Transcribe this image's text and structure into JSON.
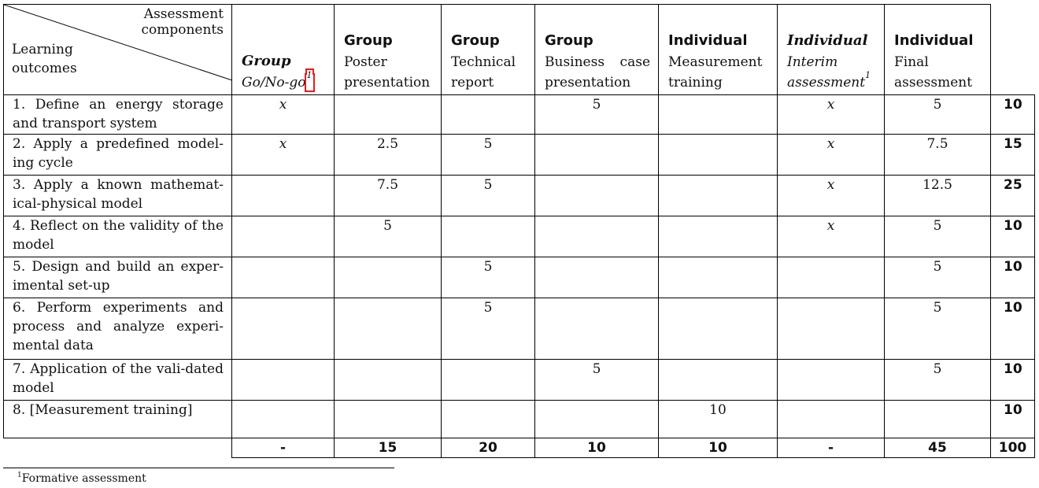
{
  "header": {
    "diag_top": [
      "Assessment",
      "components"
    ],
    "diag_bottom": [
      "Learning",
      "outcomes"
    ],
    "columns": [
      {
        "main": "Group",
        "sub": "Go/No-go",
        "sup": "1",
        "italic": true
      },
      {
        "main": "Group",
        "sub": "Poster presentation",
        "sup": "",
        "italic": false
      },
      {
        "main": "Group",
        "sub": "Technical report",
        "sup": "",
        "italic": false
      },
      {
        "main": "Group",
        "sub": "Business case presentation",
        "sup": "",
        "italic": false
      },
      {
        "main": "Individual",
        "sub": "Measurement training",
        "sup": "",
        "italic": false
      },
      {
        "main": "Individual",
        "sub": "Interim assessment",
        "sup": "1",
        "italic": true
      },
      {
        "main": "Individual",
        "sub": "Final assessment",
        "sup": "",
        "italic": false
      }
    ]
  },
  "rows": [
    {
      "outcome": "1. Define an energy storage and transport system",
      "cells": [
        "x",
        "",
        "",
        "5",
        "",
        "x",
        "5"
      ],
      "total": "10"
    },
    {
      "outcome": "2. Apply a predefined model-ing cycle",
      "cells": [
        "x",
        "2.5",
        "5",
        "",
        "",
        "x",
        "7.5"
      ],
      "total": "15"
    },
    {
      "outcome": "3. Apply a known mathemat-ical-physical model",
      "cells": [
        "",
        "7.5",
        "5",
        "",
        "",
        "x",
        "12.5"
      ],
      "total": "25"
    },
    {
      "outcome": "4. Reflect on the validity of the model",
      "cells": [
        "",
        "5",
        "",
        "",
        "",
        "x",
        "5"
      ],
      "total": "10"
    },
    {
      "outcome": "5. Design and build an exper-imental set-up",
      "cells": [
        "",
        "",
        "5",
        "",
        "",
        "",
        "5"
      ],
      "total": "10"
    },
    {
      "outcome": "6. Perform experiments and process and analyze experi-mental data",
      "cells": [
        "",
        "",
        "5",
        "",
        "",
        "",
        "5"
      ],
      "total": "10"
    },
    {
      "outcome": "7. Application of the vali-dated model",
      "cells": [
        "",
        "",
        "",
        "5",
        "",
        "",
        "5"
      ],
      "total": "10"
    },
    {
      "outcome": "8. [Measurement training]",
      "cells": [
        "",
        "",
        "",
        "",
        "10",
        "",
        ""
      ],
      "total": "10"
    }
  ],
  "totals": [
    "-",
    "15",
    "20",
    "10",
    "10",
    "-",
    "45"
  ],
  "grand_total": "100",
  "footnote": {
    "mark": "1",
    "text": "Formative assessment"
  }
}
